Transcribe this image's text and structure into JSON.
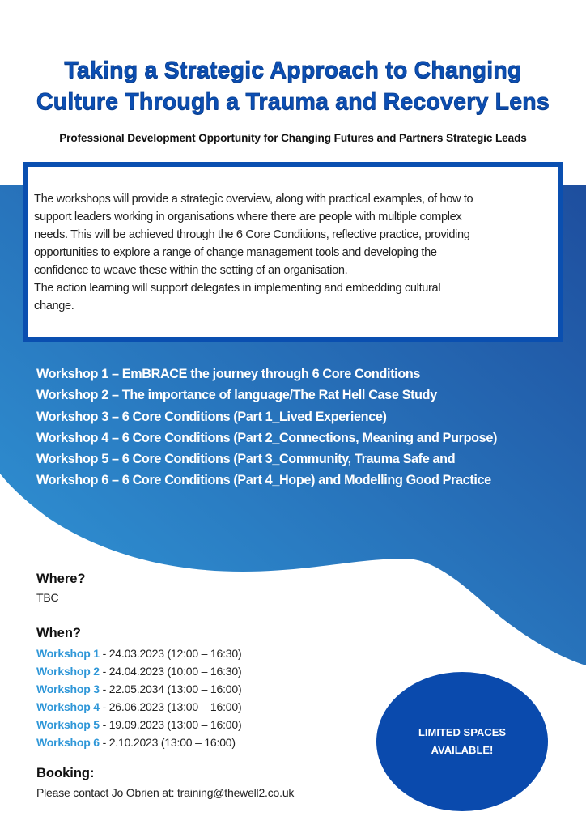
{
  "colors": {
    "title": "#0c4fb4",
    "gradient_light": "#3198d8",
    "gradient_dark": "#1e4e9e",
    "box_border": "#0a4fb0",
    "circle": "#0a4aad",
    "workshop_label": "#2f97d8"
  },
  "title": {
    "line1": "Taking a Strategic Approach to Changing",
    "line2": "Culture Through a Trauma and Recovery Lens"
  },
  "subtitle": "Professional Development Opportunity for Changing Futures and Partners Strategic Leads",
  "intro_lines": [
    "The workshops will provide a strategic overview, along with practical examples, of how to",
    "support leaders working in organisations where there are people with multiple complex",
    "needs. This will be achieved through the 6 Core Conditions, reflective practice, providing",
    "opportunities to explore a range of change management tools and developing the",
    "confidence to weave these within the setting of an organisation.",
    "The action learning will support delegates in implementing and embedding cultural",
    "change."
  ],
  "workshops": [
    "Workshop 1 – EmBRACE the journey through 6 Core Conditions",
    "Workshop 2 – The importance of language/The Rat Hell Case Study",
    "Workshop 3 – 6 Core Conditions (Part 1_Lived Experience)",
    "Workshop 4 – 6 Core Conditions (Part 2_Connections, Meaning and Purpose)",
    "Workshop 5 – 6 Core Conditions (Part 3_Community, Trauma Safe and",
    "Workshop 6 – 6 Core Conditions (Part 4_Hope) and Modelling Good Practice"
  ],
  "where": {
    "heading": "Where?",
    "value": "TBC"
  },
  "when": {
    "heading": "When?",
    "dates": [
      {
        "label": "Workshop 1",
        "value": " - 24.03.2023 (12:00 – 16:30)"
      },
      {
        "label": "Workshop 2",
        "value": " - 24.04.2023 (10:00 – 16:30)"
      },
      {
        "label": "Workshop 3",
        "value": " - 22.05.2034 (13:00 – 16:00)"
      },
      {
        "label": "Workshop 4",
        "value": " - 26.06.2023 (13:00 – 16:00)"
      },
      {
        "label": "Workshop 5",
        "value": " - 19.09.2023 (13:00 – 16:00)"
      },
      {
        "label": "Workshop 6",
        "value": " - 2.10.2023 (13:00 – 16:00)"
      }
    ]
  },
  "booking": {
    "heading": "Booking:",
    "value": "Please contact Jo Obrien at: training@thewell2.co.uk"
  },
  "badge": {
    "line1": "LIMITED SPACES",
    "line2": "AVAILABLE!"
  }
}
